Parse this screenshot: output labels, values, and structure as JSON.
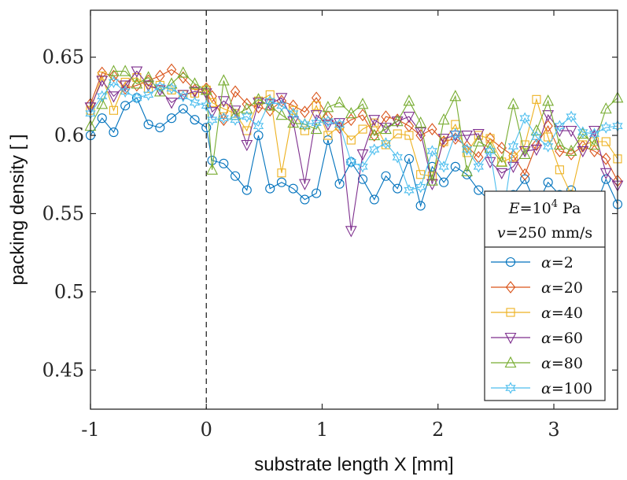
{
  "chart_data": {
    "type": "line",
    "title": "",
    "xlabel": "substrate length X [mm]",
    "ylabel": "packing density [ ]",
    "xlim": [
      -1,
      3.55
    ],
    "ylim": [
      0.425,
      0.68
    ],
    "xticks": [
      -1,
      0,
      1,
      2,
      3
    ],
    "yticks": [
      0.45,
      0.5,
      0.55,
      0.6,
      0.65
    ],
    "xtick_labels": [
      "-1",
      "0",
      "1",
      "2",
      "3"
    ],
    "ytick_labels": [
      "0.45",
      "0.5",
      "0.55",
      "0.6",
      "0.65"
    ],
    "vline_x": 0,
    "grid": false,
    "legend_position": "bottom-right",
    "annotation": {
      "line1": {
        "italic": "E",
        "eq": "=10",
        "sup": "4",
        "unit": " Pa"
      },
      "line2": {
        "italic": "v",
        "eq": "=250 mm/s"
      }
    },
    "x": [
      -1.0,
      -0.9,
      -0.8,
      -0.7,
      -0.6,
      -0.5,
      -0.4,
      -0.3,
      -0.2,
      -0.1,
      0.0,
      0.05,
      0.15,
      0.25,
      0.35,
      0.45,
      0.55,
      0.65,
      0.75,
      0.85,
      0.95,
      1.05,
      1.15,
      1.25,
      1.35,
      1.45,
      1.55,
      1.65,
      1.75,
      1.85,
      1.95,
      2.05,
      2.15,
      2.25,
      2.35,
      2.45,
      2.55,
      2.65,
      2.75,
      2.85,
      2.95,
      3.05,
      3.15,
      3.25,
      3.35,
      3.45,
      3.55
    ],
    "series": [
      {
        "name": "α=2",
        "label_prefix": "α",
        "label_value": "=2",
        "color": "#0072BD",
        "marker": "circle",
        "values": [
          0.6,
          0.611,
          0.602,
          0.619,
          0.624,
          0.607,
          0.605,
          0.611,
          0.617,
          0.61,
          0.605,
          0.584,
          0.582,
          0.574,
          0.565,
          0.6,
          0.566,
          0.57,
          0.566,
          0.559,
          0.563,
          0.597,
          0.569,
          0.583,
          0.572,
          0.559,
          0.574,
          0.566,
          0.585,
          0.555,
          0.58,
          0.57,
          0.58,
          0.575,
          0.565,
          0.558,
          0.555,
          0.562,
          0.572,
          0.555,
          0.57,
          0.562,
          0.565,
          0.56,
          0.553,
          0.572,
          0.556
        ]
      },
      {
        "name": "α=20",
        "label_prefix": "α",
        "label_value": "=20",
        "color": "#D95319",
        "marker": "diamond",
        "values": [
          0.62,
          0.64,
          0.638,
          0.63,
          0.632,
          0.635,
          0.638,
          0.642,
          0.637,
          0.629,
          0.63,
          0.625,
          0.61,
          0.628,
          0.62,
          0.618,
          0.616,
          0.622,
          0.619,
          0.615,
          0.624,
          0.612,
          0.605,
          0.61,
          0.613,
          0.6,
          0.612,
          0.61,
          0.606,
          0.6,
          0.604,
          0.596,
          0.598,
          0.593,
          0.586,
          0.598,
          0.592,
          0.587,
          0.575,
          0.594,
          0.606,
          0.59,
          0.588,
          0.593,
          0.59,
          0.585,
          0.571
        ]
      },
      {
        "name": "α=40",
        "label_prefix": "α",
        "label_value": "=40",
        "color": "#EDB120",
        "marker": "square",
        "values": [
          0.616,
          0.638,
          0.616,
          0.634,
          0.637,
          0.63,
          0.632,
          0.629,
          0.626,
          0.627,
          0.629,
          0.621,
          0.617,
          0.614,
          0.603,
          0.622,
          0.626,
          0.576,
          0.616,
          0.603,
          0.619,
          0.6,
          0.606,
          0.597,
          0.604,
          0.608,
          0.594,
          0.601,
          0.6,
          0.575,
          0.574,
          0.596,
          0.607,
          0.589,
          0.6,
          0.598,
          0.583,
          0.586,
          0.594,
          0.623,
          0.599,
          0.578,
          0.562,
          0.594,
          0.596,
          0.596,
          0.585
        ]
      },
      {
        "name": "α=60",
        "label_prefix": "α",
        "label_value": "=60",
        "color": "#7E2F8E",
        "marker": "triangle-down",
        "values": [
          0.618,
          0.635,
          0.625,
          0.632,
          0.641,
          0.632,
          0.629,
          0.621,
          0.626,
          0.628,
          0.627,
          0.615,
          0.622,
          0.616,
          0.594,
          0.621,
          0.62,
          0.624,
          0.609,
          0.569,
          0.613,
          0.607,
          0.608,
          0.539,
          0.588,
          0.61,
          0.605,
          0.609,
          0.612,
          0.602,
          0.569,
          0.598,
          0.6,
          0.6,
          0.601,
          0.583,
          0.576,
          0.58,
          0.59,
          0.591,
          0.613,
          0.603,
          0.603,
          0.59,
          0.603,
          0.576,
          0.568
        ]
      },
      {
        "name": "α=80",
        "label_prefix": "α",
        "label_value": "=80",
        "color": "#77AC30",
        "marker": "triangle-up",
        "values": [
          0.606,
          0.62,
          0.641,
          0.641,
          0.633,
          0.637,
          0.628,
          0.633,
          0.64,
          0.633,
          0.629,
          0.578,
          0.635,
          0.613,
          0.617,
          0.623,
          0.619,
          0.613,
          0.608,
          0.607,
          0.604,
          0.618,
          0.621,
          0.614,
          0.62,
          0.6,
          0.604,
          0.609,
          0.622,
          0.608,
          0.571,
          0.61,
          0.625,
          0.577,
          0.596,
          0.592,
          0.583,
          0.62,
          0.588,
          0.603,
          0.622,
          0.594,
          0.59,
          0.601,
          0.594,
          0.617,
          0.624
        ]
      },
      {
        "name": "α=100",
        "label_prefix": "α",
        "label_value": "=100",
        "color": "#4DBEEE",
        "marker": "hexagram",
        "values": [
          0.614,
          0.625,
          0.634,
          0.628,
          0.624,
          0.626,
          0.631,
          0.63,
          0.625,
          0.621,
          0.619,
          0.61,
          0.611,
          0.61,
          0.612,
          0.606,
          0.622,
          0.619,
          0.614,
          0.607,
          0.608,
          0.609,
          0.607,
          0.583,
          0.58,
          0.591,
          0.595,
          0.586,
          0.565,
          0.567,
          0.59,
          0.58,
          0.601,
          0.591,
          0.58,
          0.59,
          0.543,
          0.593,
          0.611,
          0.599,
          0.593,
          0.606,
          0.612,
          0.602,
          0.601,
          0.605,
          0.606
        ]
      }
    ]
  }
}
